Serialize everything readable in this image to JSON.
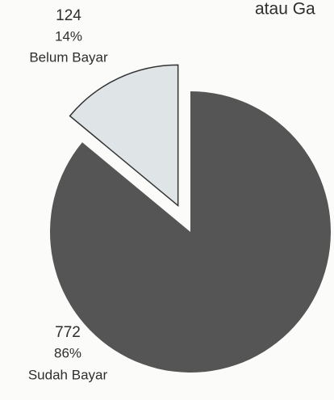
{
  "header_text": "atau Ga",
  "chart_data": {
    "type": "pie",
    "categories": [
      "Belum Bayar",
      "Sudah Bayar"
    ],
    "values": [
      14,
      86
    ],
    "value_labels": [
      "14%",
      "86%"
    ],
    "counts": [
      124,
      772
    ],
    "colors": [
      "#dfe4e7",
      "#555555"
    ],
    "exploded": [
      true,
      false
    ]
  }
}
